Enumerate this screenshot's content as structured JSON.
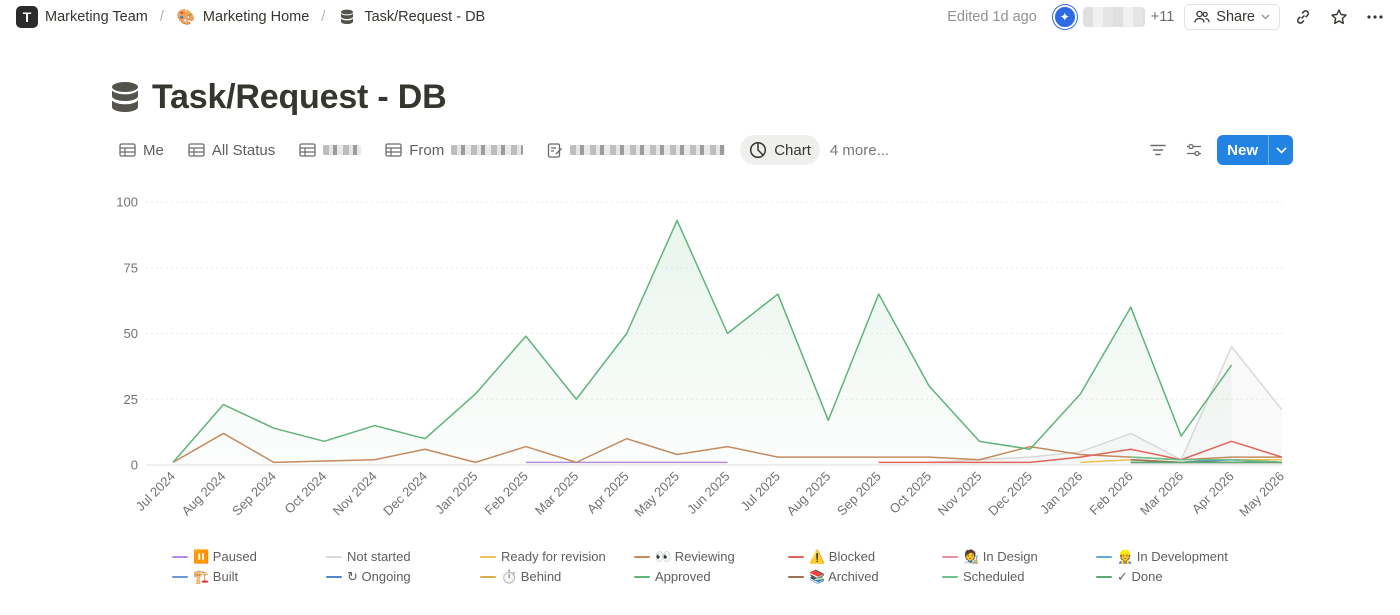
{
  "breadcrumb": {
    "workspace": "Marketing Team",
    "workspace_icon": "T",
    "parent": "Marketing Home",
    "parent_icon": "🎨",
    "current": "Task/Request - DB"
  },
  "header": {
    "edited": "Edited 1d ago",
    "more_users": "+11",
    "share_label": "Share"
  },
  "page": {
    "title": "Task/Request - DB"
  },
  "views": {
    "me": "Me",
    "all_status": "All Status",
    "from_prefix": "From",
    "chart": "Chart",
    "more": "4 more..."
  },
  "toolbar": {
    "new_label": "New"
  },
  "colors": {
    "accent": "#2383e2",
    "approved": "#5fb47a",
    "reviewing": "#c48a5e",
    "blocked": "#e0655b",
    "not_started": "#d9d9d6",
    "paused": "#b58be0"
  },
  "chart_data": {
    "type": "area",
    "categories": [
      "Jul 2024",
      "Aug 2024",
      "Sep 2024",
      "Oct 2024",
      "Nov 2024",
      "Dec 2024",
      "Jan 2025",
      "Feb 2025",
      "Mar 2025",
      "Apr 2025",
      "May 2025",
      "Jun 2025",
      "Jul 2025",
      "Aug 2025",
      "Sep 2025",
      "Oct 2025",
      "Nov 2025",
      "Dec 2025",
      "Jan 2026",
      "Feb 2026",
      "Mar 2026",
      "Apr 2026",
      "May 2026"
    ],
    "ylim": [
      0,
      100
    ],
    "yticks": [
      0,
      25,
      50,
      75,
      100
    ],
    "grid": true,
    "legend_position": "bottom",
    "series": [
      {
        "name": "⏸️ Paused",
        "color": "#b58be0",
        "values": [
          null,
          null,
          null,
          null,
          null,
          null,
          null,
          1,
          1,
          1,
          1,
          1,
          null,
          null,
          null,
          null,
          null,
          null,
          null,
          null,
          null,
          null,
          null
        ]
      },
      {
        "name": "Not started",
        "color": "#d9d9d6",
        "values": [
          null,
          null,
          null,
          null,
          null,
          null,
          null,
          null,
          null,
          null,
          null,
          null,
          null,
          null,
          null,
          1,
          2,
          3,
          5,
          12,
          2,
          45,
          21
        ]
      },
      {
        "name": "Ready for revision",
        "color": "#e8c25a",
        "values": [
          null,
          null,
          null,
          null,
          null,
          null,
          null,
          null,
          null,
          null,
          null,
          null,
          null,
          null,
          null,
          null,
          null,
          null,
          1,
          2,
          1,
          2,
          2
        ]
      },
      {
        "name": "👀 Reviewing",
        "color": "#c48a5e",
        "values": [
          1,
          12,
          1,
          1.5,
          2,
          6,
          1,
          7,
          1,
          10,
          4,
          7,
          3,
          3,
          3,
          3,
          2,
          7,
          4,
          3,
          2,
          3,
          3
        ]
      },
      {
        "name": "⚠️ Blocked",
        "color": "#e0655b",
        "values": [
          null,
          null,
          null,
          null,
          null,
          null,
          null,
          null,
          null,
          null,
          null,
          null,
          null,
          null,
          1,
          1,
          1,
          1,
          3,
          6,
          2,
          9,
          3
        ]
      },
      {
        "name": "🧑‍🎨 In Design",
        "color": "#e58fa0",
        "values": [
          null,
          null,
          null,
          null,
          null,
          null,
          null,
          null,
          null,
          null,
          null,
          null,
          null,
          null,
          null,
          null,
          null,
          null,
          null,
          2,
          1,
          2,
          1
        ]
      },
      {
        "name": "👷 In Development",
        "color": "#5ab0d8",
        "values": [
          null,
          null,
          null,
          null,
          null,
          null,
          null,
          null,
          null,
          null,
          null,
          null,
          null,
          null,
          null,
          null,
          null,
          null,
          null,
          1,
          1,
          1,
          1
        ]
      },
      {
        "name": "🏗️ Built",
        "color": "#6b98d6",
        "values": [
          null,
          null,
          null,
          null,
          null,
          null,
          null,
          null,
          null,
          null,
          null,
          null,
          null,
          null,
          null,
          null,
          null,
          null,
          null,
          1,
          1,
          1,
          1
        ]
      },
      {
        "name": "↻ Ongoing",
        "color": "#4f86c6",
        "values": [
          null,
          null,
          null,
          null,
          null,
          null,
          null,
          null,
          null,
          null,
          null,
          null,
          null,
          null,
          null,
          null,
          null,
          null,
          null,
          1,
          1,
          2,
          1
        ]
      },
      {
        "name": "⏱️ Behind",
        "color": "#d9b04a",
        "values": [
          null,
          null,
          null,
          null,
          null,
          null,
          null,
          null,
          null,
          null,
          null,
          null,
          null,
          null,
          null,
          null,
          null,
          null,
          null,
          1,
          1,
          1,
          1
        ]
      },
      {
        "name": "Approved",
        "color": "#5fb47a",
        "values": [
          1,
          23,
          14,
          9,
          15,
          10,
          27,
          49,
          25,
          50,
          93,
          50,
          65,
          17,
          65,
          30,
          9,
          6,
          27,
          60,
          11,
          38,
          null
        ]
      },
      {
        "name": "📚 Archived",
        "color": "#9a7355",
        "values": [
          null,
          null,
          null,
          null,
          null,
          null,
          null,
          null,
          null,
          null,
          null,
          null,
          null,
          null,
          null,
          null,
          null,
          null,
          null,
          2,
          1,
          1,
          1
        ]
      },
      {
        "name": "Scheduled",
        "color": "#6cc28a",
        "values": [
          null,
          null,
          null,
          null,
          null,
          null,
          null,
          null,
          null,
          null,
          null,
          null,
          null,
          null,
          null,
          null,
          null,
          null,
          null,
          3,
          2,
          2,
          1
        ]
      },
      {
        "name": "✓ Done",
        "color": "#5aa872",
        "values": [
          null,
          null,
          null,
          null,
          null,
          null,
          null,
          null,
          null,
          null,
          null,
          null,
          null,
          null,
          null,
          null,
          null,
          null,
          null,
          1,
          1,
          1,
          1
        ]
      }
    ]
  }
}
